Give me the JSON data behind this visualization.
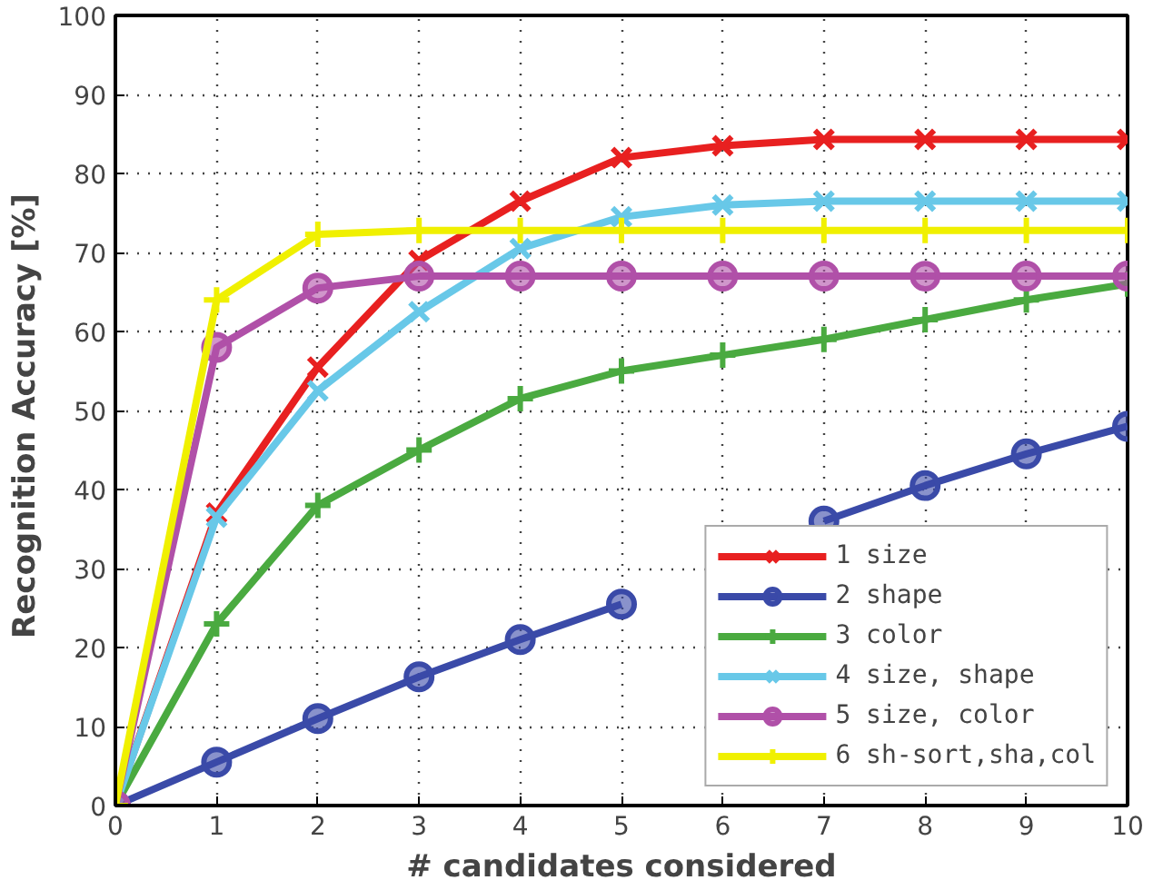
{
  "chart_data": {
    "type": "line",
    "xlabel": "# candidates considered",
    "ylabel": "Recognition Accuracy  [%]",
    "x": [
      0,
      1,
      2,
      3,
      4,
      5,
      6,
      7,
      8,
      9,
      10
    ],
    "xlim": [
      0,
      10
    ],
    "xticks": [
      0,
      1,
      2,
      3,
      4,
      5,
      6,
      7,
      8,
      9,
      10
    ],
    "ylim": [
      0,
      100
    ],
    "yticks": [
      0,
      10,
      20,
      30,
      40,
      50,
      60,
      70,
      80,
      90,
      100
    ],
    "grid": true,
    "legend": "bottom right",
    "line_style": "solid",
    "series": [
      {
        "name": "1 size",
        "color": "#e82020",
        "marker": "x",
        "values": [
          0,
          37,
          55.5,
          69,
          76.5,
          82,
          83.5,
          84.3,
          84.3,
          84.3,
          84.3
        ]
      },
      {
        "name": "2 shape",
        "color": "#3a4aa8",
        "marker": "circle",
        "values": [
          0,
          5.5,
          11,
          16.3,
          21,
          25.5,
          null,
          36,
          40.5,
          44.5,
          48
        ]
      },
      {
        "name": "3 color",
        "color": "#4aaa40",
        "marker": "cross",
        "values": [
          0,
          23,
          38,
          45,
          51.5,
          55,
          57,
          59,
          61.5,
          64,
          66
        ]
      },
      {
        "name": "4 size, shape",
        "color": "#68c8e8",
        "marker": "x",
        "values": [
          0,
          36.5,
          52.5,
          62.5,
          70.5,
          74.5,
          76,
          76.5,
          76.5,
          76.5,
          76.5
        ]
      },
      {
        "name": "5 size, color",
        "color": "#b050a8",
        "marker": "circle",
        "values": [
          0,
          58,
          65.5,
          67,
          67,
          67,
          67,
          67,
          67,
          67,
          67
        ]
      },
      {
        "name": "6 sh-sort,sha,col",
        "color": "#f0f000",
        "marker": "cross",
        "values": [
          0,
          64,
          72.3,
          72.8,
          72.8,
          72.8,
          72.8,
          72.8,
          72.8,
          72.8,
          72.8
        ]
      }
    ]
  }
}
